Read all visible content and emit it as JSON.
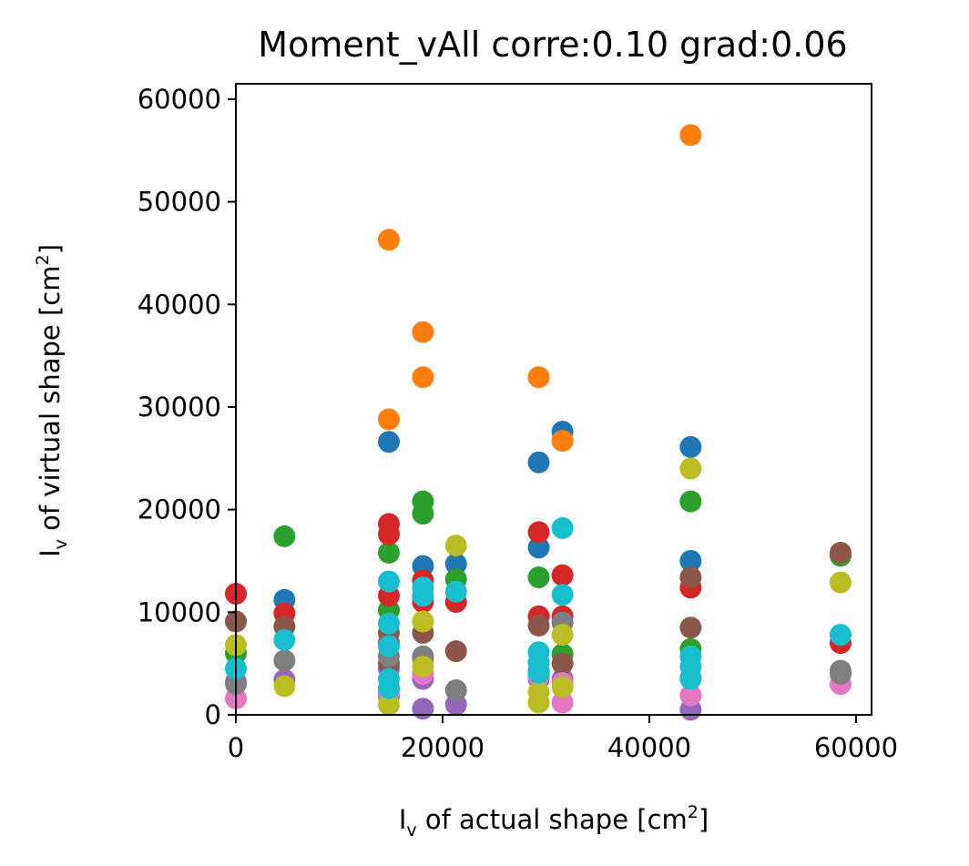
{
  "chart_data": {
    "type": "scatter",
    "title": "Moment_vAll corre:0.10 grad:0.06",
    "xlabel": {
      "main": "I",
      "sub": "v",
      "rest": " of actual shape [cm",
      "sup": "2",
      "end": "]"
    },
    "ylabel": {
      "main": "I",
      "sub": "v",
      "rest": " of virtual shape [cm",
      "sup": "2",
      "end": "]"
    },
    "xlim": [
      0,
      61500
    ],
    "ylim": [
      0,
      61500
    ],
    "xticks": [
      0,
      20000,
      40000,
      60000
    ],
    "yticks": [
      0,
      10000,
      20000,
      30000,
      40000,
      50000,
      60000
    ],
    "grid": false,
    "series": [
      {
        "color": "#1f77b4",
        "points": [
          [
            14800,
            26600
          ],
          [
            18100,
            14500
          ],
          [
            21300,
            14700
          ],
          [
            29300,
            24600
          ],
          [
            29300,
            16300
          ],
          [
            31600,
            27600
          ],
          [
            44000,
            26100
          ],
          [
            44000,
            15000
          ],
          [
            4700,
            11200
          ]
        ]
      },
      {
        "color": "#ff7f0e",
        "points": [
          [
            14800,
            46300
          ],
          [
            18100,
            37300
          ],
          [
            18100,
            32900
          ],
          [
            14800,
            28800
          ],
          [
            29300,
            32900
          ],
          [
            31600,
            26700
          ],
          [
            44000,
            56500
          ]
        ]
      },
      {
        "color": "#2ca02c",
        "points": [
          [
            4700,
            17400
          ],
          [
            14800,
            15800
          ],
          [
            14800,
            10200
          ],
          [
            18100,
            20800
          ],
          [
            18100,
            19600
          ],
          [
            21300,
            13200
          ],
          [
            29300,
            13400
          ],
          [
            31600,
            5900
          ],
          [
            44000,
            20800
          ],
          [
            44000,
            6400
          ],
          [
            58500,
            15500
          ],
          [
            0,
            6000
          ]
        ]
      },
      {
        "color": "#d62728",
        "points": [
          [
            0,
            11800
          ],
          [
            4700,
            9900
          ],
          [
            14800,
            18600
          ],
          [
            14800,
            17600
          ],
          [
            14800,
            11600
          ],
          [
            14800,
            7000
          ],
          [
            18100,
            13100
          ],
          [
            18100,
            11000
          ],
          [
            21300,
            11000
          ],
          [
            29300,
            17800
          ],
          [
            29300,
            9600
          ],
          [
            31600,
            13600
          ],
          [
            31600,
            9600
          ],
          [
            44000,
            12400
          ],
          [
            58500,
            7000
          ]
        ]
      },
      {
        "color": "#9467bd",
        "points": [
          [
            0,
            3200
          ],
          [
            4700,
            3400
          ],
          [
            14800,
            4500
          ],
          [
            18100,
            3500
          ],
          [
            18100,
            600
          ],
          [
            21300,
            1000
          ],
          [
            29300,
            3500
          ],
          [
            31600,
            3500
          ],
          [
            44000,
            500
          ],
          [
            14800,
            1800
          ]
        ]
      },
      {
        "color": "#8c564b",
        "points": [
          [
            0,
            9100
          ],
          [
            4700,
            8600
          ],
          [
            14800,
            8000
          ],
          [
            14800,
            5000
          ],
          [
            18100,
            8000
          ],
          [
            18100,
            5500
          ],
          [
            21300,
            6200
          ],
          [
            29300,
            8700
          ],
          [
            31600,
            5000
          ],
          [
            44000,
            13400
          ],
          [
            44000,
            8500
          ],
          [
            58500,
            15800
          ]
        ]
      },
      {
        "color": "#e377c2",
        "points": [
          [
            0,
            1600
          ],
          [
            14800,
            2200
          ],
          [
            18100,
            4000
          ],
          [
            29300,
            3800
          ],
          [
            31600,
            1200
          ],
          [
            31600,
            3100
          ],
          [
            44000,
            1900
          ],
          [
            58500,
            3000
          ]
        ]
      },
      {
        "color": "#7f7f7f",
        "points": [
          [
            0,
            3000
          ],
          [
            4700,
            5300
          ],
          [
            14800,
            5700
          ],
          [
            18100,
            5700
          ],
          [
            21300,
            2400
          ],
          [
            29300,
            4300
          ],
          [
            31600,
            9000
          ],
          [
            44000,
            3600
          ],
          [
            58500,
            4300
          ],
          [
            58500,
            4000
          ]
        ]
      },
      {
        "color": "#bcbd22",
        "points": [
          [
            0,
            6800
          ],
          [
            4700,
            2800
          ],
          [
            14800,
            1000
          ],
          [
            18100,
            9100
          ],
          [
            18100,
            4700
          ],
          [
            21300,
            16500
          ],
          [
            29300,
            1200
          ],
          [
            29300,
            2200
          ],
          [
            31600,
            7800
          ],
          [
            31600,
            2700
          ],
          [
            44000,
            24000
          ],
          [
            58500,
            12900
          ]
        ]
      },
      {
        "color": "#17becf",
        "points": [
          [
            0,
            4500
          ],
          [
            4700,
            7300
          ],
          [
            14800,
            13000
          ],
          [
            14800,
            8900
          ],
          [
            14800,
            6700
          ],
          [
            14800,
            3500
          ],
          [
            14800,
            2600
          ],
          [
            18100,
            12400
          ],
          [
            18100,
            11600
          ],
          [
            21300,
            12000
          ],
          [
            29300,
            6100
          ],
          [
            29300,
            5100
          ],
          [
            29300,
            4100
          ],
          [
            31600,
            18200
          ],
          [
            31600,
            11700
          ],
          [
            44000,
            5700
          ],
          [
            44000,
            4700
          ],
          [
            44000,
            3500
          ],
          [
            58500,
            7800
          ]
        ]
      }
    ]
  }
}
